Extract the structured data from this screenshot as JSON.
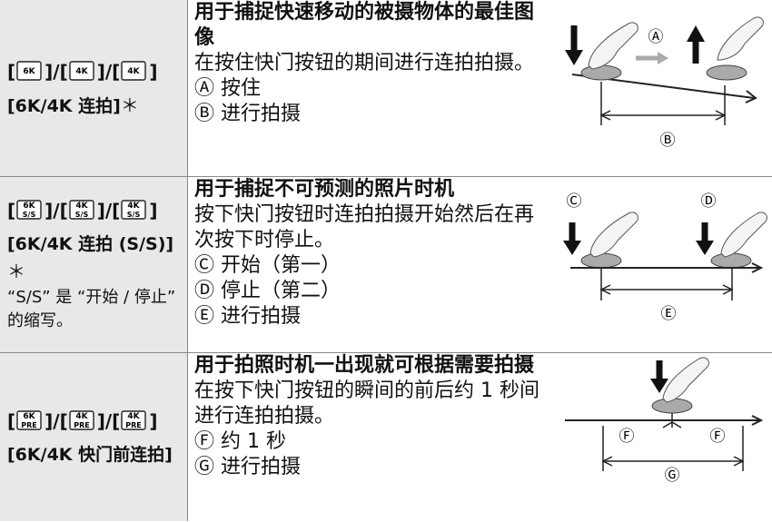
{
  "rows": [
    {
      "icon_separators": [
        "[",
        "]/[",
        "]/[",
        "]"
      ],
      "icons": [
        "6K",
        "4K",
        "4K"
      ],
      "mode": "[6K/4K 连拍]",
      "mode_mark": "＊",
      "heading": "用于捕捉快速移动的被摄物体的最佳图像",
      "description": "在按住快门按钮的期间进行连拍拍摄。",
      "legend": [
        {
          "marker": "Ⓐ",
          "text": "按住"
        },
        {
          "marker": "Ⓑ",
          "text": "进行拍摄"
        }
      ]
    },
    {
      "icon_separators": [
        "[",
        "]/[",
        "]/[",
        "]"
      ],
      "icons": [
        "6K",
        "4K",
        "4K"
      ],
      "icon_sub": "S/S",
      "mode": "[6K/4K 连拍 (S/S)]",
      "mode_mark": "＊",
      "note": "“S/S” 是 “开始 / 停止” 的缩写。",
      "heading": "用于捕捉不可预测的照片时机",
      "description": "按下快门按钮时连拍拍摄开始然后在再次按下时停止。",
      "legend": [
        {
          "marker": "Ⓒ",
          "text": "开始（第一）"
        },
        {
          "marker": "Ⓓ",
          "text": "停止（第二）"
        },
        {
          "marker": "Ⓔ",
          "text": "进行拍摄"
        }
      ]
    },
    {
      "icon_separators": [
        "[",
        "]/[",
        "]/[",
        "]"
      ],
      "icons": [
        "6K",
        "4K",
        "4K"
      ],
      "icon_sub": "PRE",
      "mode": "[6K/4K 快门前连拍]",
      "heading": "用于拍照时机一出现就可根据需要拍摄",
      "description": "在按下快门按钮的瞬间的前后约 1 秒间进行连拍拍摄。",
      "legend": [
        {
          "marker": "Ⓕ",
          "text": "约 1 秒"
        },
        {
          "marker": "Ⓖ",
          "text": "进行拍摄"
        }
      ]
    }
  ]
}
